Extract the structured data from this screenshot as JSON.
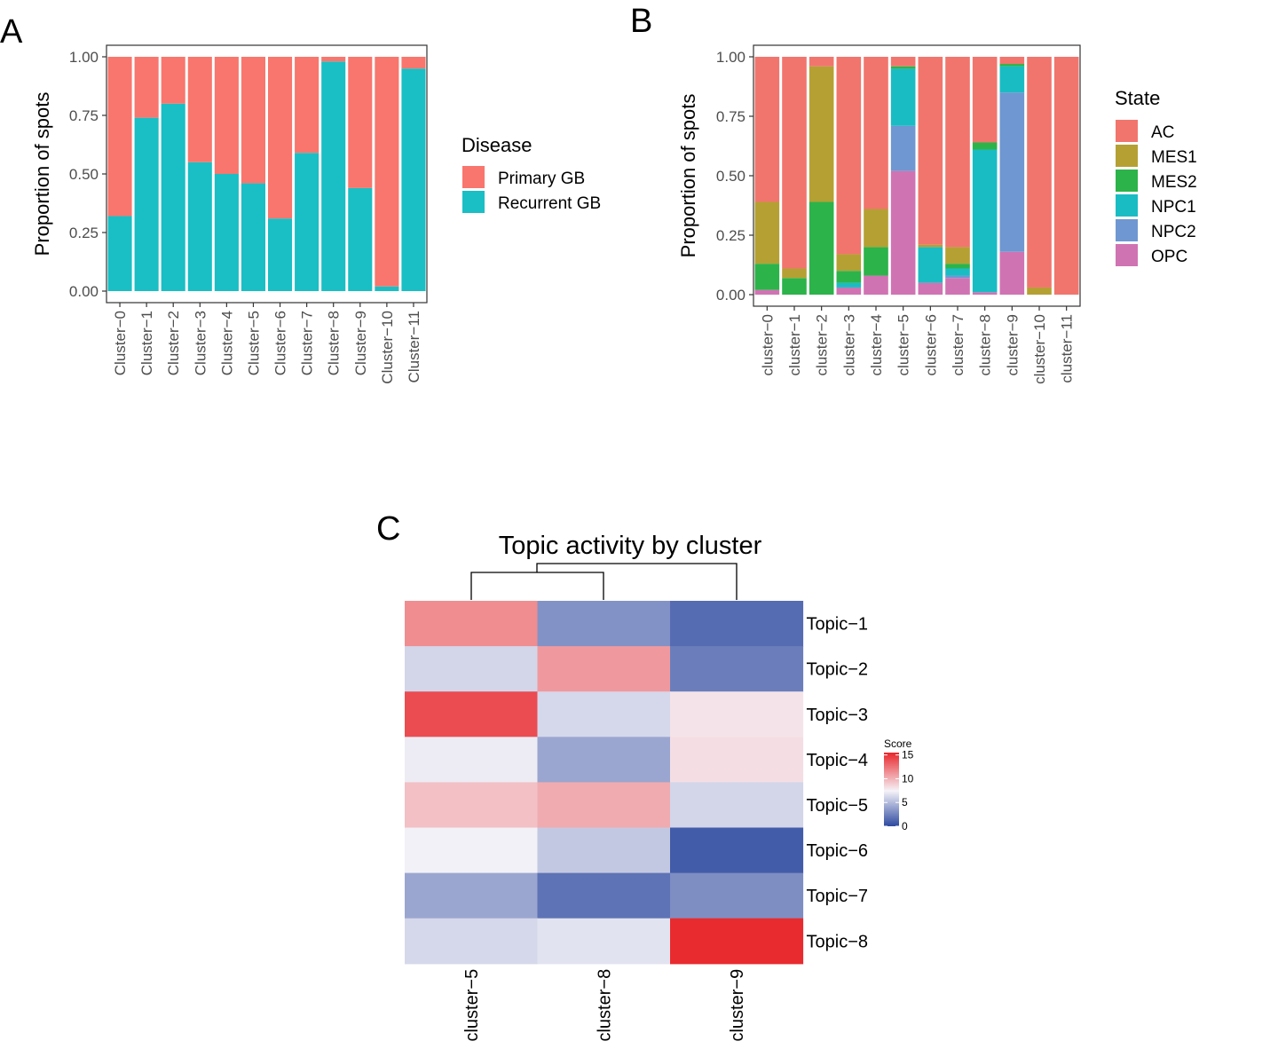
{
  "panels": {
    "a": "A",
    "b": "B",
    "c": "C"
  },
  "colors": {
    "primary": "#F8766D",
    "recurrent": "#19BFC4",
    "AC": "#F1756D",
    "MES1": "#B5A033",
    "MES2": "#2CB34A",
    "NPC1": "#1ABCC4",
    "NPC2": "#6F97D1",
    "OPC": "#D073B3"
  },
  "chart_data": [
    {
      "id": "A",
      "type": "bar",
      "stacked": true,
      "ylabel": "Proportion of spots",
      "ylim": [
        0,
        1
      ],
      "yticks": [
        "0.00",
        "0.25",
        "0.50",
        "0.75",
        "1.00"
      ],
      "categories": [
        "Cluster−0",
        "Cluster−1",
        "Cluster−2",
        "Cluster−3",
        "Cluster−4",
        "Cluster−5",
        "Cluster−6",
        "Cluster−7",
        "Cluster−8",
        "Cluster−9",
        "Cluster−10",
        "Cluster−11"
      ],
      "legend_title": "Disease",
      "series": [
        {
          "name": "Recurrent GB",
          "color_key": "recurrent",
          "values": [
            0.32,
            0.74,
            0.8,
            0.55,
            0.5,
            0.46,
            0.31,
            0.59,
            0.98,
            0.44,
            0.02,
            0.95
          ]
        },
        {
          "name": "Primary GB",
          "color_key": "primary",
          "values": [
            0.68,
            0.26,
            0.2,
            0.45,
            0.5,
            0.54,
            0.69,
            0.41,
            0.02,
            0.56,
            0.98,
            0.05
          ]
        }
      ],
      "legend_order": [
        "Primary GB",
        "Recurrent GB"
      ]
    },
    {
      "id": "B",
      "type": "bar",
      "stacked": true,
      "ylabel": "Proportion of spots",
      "ylim": [
        0,
        1
      ],
      "yticks": [
        "0.00",
        "0.25",
        "0.50",
        "0.75",
        "1.00"
      ],
      "categories": [
        "cluster−0",
        "cluster−1",
        "cluster−2",
        "cluster−3",
        "cluster−4",
        "cluster−5",
        "cluster−6",
        "cluster−7",
        "cluster−8",
        "cluster−9",
        "cluster−10",
        "cluster−11"
      ],
      "legend_title": "State",
      "series": [
        {
          "name": "OPC",
          "color_key": "OPC",
          "values": [
            0.02,
            0.0,
            0.0,
            0.03,
            0.08,
            0.52,
            0.05,
            0.07,
            0.01,
            0.18,
            0.0,
            0.0
          ]
        },
        {
          "name": "NPC2",
          "color_key": "NPC2",
          "values": [
            0.0,
            0.0,
            0.0,
            0.0,
            0.0,
            0.19,
            0.0,
            0.01,
            0.0,
            0.67,
            0.0,
            0.0
          ]
        },
        {
          "name": "NPC1",
          "color_key": "NPC1",
          "values": [
            0.0,
            0.0,
            0.0,
            0.02,
            0.0,
            0.24,
            0.15,
            0.03,
            0.6,
            0.11,
            0.0,
            0.0
          ]
        },
        {
          "name": "MES2",
          "color_key": "MES2",
          "values": [
            0.11,
            0.07,
            0.39,
            0.05,
            0.12,
            0.01,
            0.0,
            0.02,
            0.03,
            0.01,
            0.0,
            0.0
          ]
        },
        {
          "name": "MES1",
          "color_key": "MES1",
          "values": [
            0.26,
            0.04,
            0.57,
            0.07,
            0.16,
            0.0,
            0.01,
            0.07,
            0.0,
            0.0,
            0.03,
            0.0
          ]
        },
        {
          "name": "AC",
          "color_key": "AC",
          "values": [
            0.61,
            0.89,
            0.04,
            0.83,
            0.64,
            0.04,
            0.79,
            0.8,
            0.36,
            0.03,
            0.97,
            1.0
          ]
        }
      ],
      "legend_order": [
        "AC",
        "MES1",
        "MES2",
        "NPC1",
        "NPC2",
        "OPC"
      ]
    },
    {
      "id": "C",
      "type": "heatmap",
      "title": "Topic activity by cluster",
      "columns": [
        "cluster−5",
        "cluster−8",
        "cluster−9"
      ],
      "rows": [
        "Topic−1",
        "Topic−2",
        "Topic−3",
        "Topic−4",
        "Topic−5",
        "Topic−6",
        "Topic−7",
        "Topic−8"
      ],
      "values": [
        [
          11.5,
          3.2,
          1.5
        ],
        [
          6.2,
          11.0,
          2.3
        ],
        [
          14.0,
          6.3,
          8.1
        ],
        [
          7.2,
          4.1,
          8.3
        ],
        [
          9.5,
          10.3,
          6.2
        ],
        [
          7.4,
          5.6,
          0.8
        ],
        [
          4.1,
          1.8,
          3.0
        ],
        [
          6.3,
          6.8,
          15.3
        ]
      ],
      "colorbar": {
        "title": "Score",
        "min": 0,
        "max": 15.5,
        "ticks": [
          "0",
          "5",
          "10",
          "15"
        ]
      },
      "dendrogram": "cluster−5 joined with cluster−8, then with cluster−9"
    }
  ]
}
